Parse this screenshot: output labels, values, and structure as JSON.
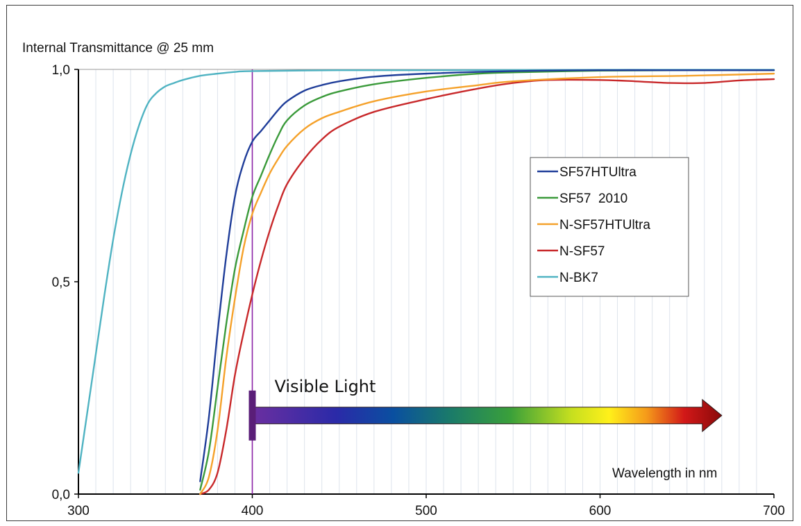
{
  "chart_data": {
    "type": "line",
    "ylabel": "Internal Transmittance @ 25 mm",
    "xlabel": "Wavelength  in nm",
    "xlim": [
      300,
      700
    ],
    "ylim": [
      0,
      1
    ],
    "x_ticks": [
      300,
      400,
      500,
      600,
      700
    ],
    "x_tick_labels": [
      "300",
      "400",
      "500",
      "600",
      "700"
    ],
    "y_ticks": [
      0,
      0.5,
      1
    ],
    "y_tick_labels": [
      "0,0",
      "0,5",
      "1,0"
    ],
    "grid": "vertical minor gridlines every 10 nm",
    "legend_position": "center-right",
    "marker_line_x": 400,
    "annotation": {
      "text": "Visible Light",
      "start_x": 400,
      "end_x": 670,
      "y": 0.185
    },
    "series": [
      {
        "name": "SF57HTUltra",
        "color": "#1f3d99",
        "points": [
          [
            370,
            0.03
          ],
          [
            375,
            0.18
          ],
          [
            380,
            0.38
          ],
          [
            385,
            0.56
          ],
          [
            390,
            0.7
          ],
          [
            395,
            0.78
          ],
          [
            400,
            0.83
          ],
          [
            405,
            0.855
          ],
          [
            410,
            0.88
          ],
          [
            415,
            0.905
          ],
          [
            420,
            0.925
          ],
          [
            430,
            0.95
          ],
          [
            440,
            0.963
          ],
          [
            450,
            0.972
          ],
          [
            470,
            0.983
          ],
          [
            500,
            0.99
          ],
          [
            550,
            0.996
          ],
          [
            600,
            0.998
          ],
          [
            650,
            0.998
          ],
          [
            700,
            0.998
          ]
        ]
      },
      {
        "name": "SF57  2010",
        "color": "#3a9a3a",
        "points": [
          [
            370,
            0.01
          ],
          [
            375,
            0.1
          ],
          [
            380,
            0.25
          ],
          [
            385,
            0.4
          ],
          [
            390,
            0.53
          ],
          [
            395,
            0.62
          ],
          [
            400,
            0.7
          ],
          [
            405,
            0.75
          ],
          [
            410,
            0.8
          ],
          [
            415,
            0.845
          ],
          [
            420,
            0.88
          ],
          [
            430,
            0.915
          ],
          [
            440,
            0.935
          ],
          [
            450,
            0.948
          ],
          [
            470,
            0.965
          ],
          [
            500,
            0.98
          ],
          [
            530,
            0.99
          ],
          [
            550,
            0.993
          ],
          [
            600,
            0.997
          ],
          [
            650,
            0.998
          ],
          [
            700,
            0.998
          ]
        ]
      },
      {
        "name": "N-SF57HTUltra",
        "color": "#f5a12a",
        "points": [
          [
            370,
            0.0
          ],
          [
            375,
            0.04
          ],
          [
            380,
            0.15
          ],
          [
            385,
            0.32
          ],
          [
            390,
            0.46
          ],
          [
            395,
            0.58
          ],
          [
            400,
            0.66
          ],
          [
            405,
            0.71
          ],
          [
            410,
            0.755
          ],
          [
            415,
            0.79
          ],
          [
            420,
            0.82
          ],
          [
            430,
            0.86
          ],
          [
            440,
            0.885
          ],
          [
            450,
            0.9
          ],
          [
            470,
            0.925
          ],
          [
            500,
            0.948
          ],
          [
            530,
            0.963
          ],
          [
            550,
            0.972
          ],
          [
            600,
            0.982
          ],
          [
            650,
            0.985
          ],
          [
            700,
            0.99
          ]
        ]
      },
      {
        "name": "N-SF57",
        "color": "#c8282a",
        "points": [
          [
            370,
            0.0
          ],
          [
            375,
            0.01
          ],
          [
            380,
            0.05
          ],
          [
            385,
            0.15
          ],
          [
            390,
            0.28
          ],
          [
            395,
            0.38
          ],
          [
            400,
            0.47
          ],
          [
            405,
            0.55
          ],
          [
            410,
            0.62
          ],
          [
            415,
            0.68
          ],
          [
            420,
            0.73
          ],
          [
            430,
            0.79
          ],
          [
            440,
            0.835
          ],
          [
            450,
            0.865
          ],
          [
            470,
            0.9
          ],
          [
            500,
            0.93
          ],
          [
            530,
            0.955
          ],
          [
            550,
            0.968
          ],
          [
            570,
            0.975
          ],
          [
            600,
            0.975
          ],
          [
            620,
            0.972
          ],
          [
            640,
            0.968
          ],
          [
            660,
            0.968
          ],
          [
            680,
            0.974
          ],
          [
            700,
            0.977
          ]
        ]
      },
      {
        "name": "N-BK7",
        "color": "#4fb3c2",
        "points": [
          [
            300,
            0.05
          ],
          [
            305,
            0.19
          ],
          [
            310,
            0.33
          ],
          [
            315,
            0.47
          ],
          [
            320,
            0.6
          ],
          [
            325,
            0.71
          ],
          [
            330,
            0.8
          ],
          [
            335,
            0.87
          ],
          [
            340,
            0.92
          ],
          [
            345,
            0.945
          ],
          [
            350,
            0.96
          ],
          [
            355,
            0.968
          ],
          [
            360,
            0.975
          ],
          [
            370,
            0.985
          ],
          [
            380,
            0.99
          ],
          [
            390,
            0.994
          ],
          [
            400,
            0.996
          ],
          [
            450,
            0.998
          ],
          [
            500,
            0.998
          ],
          [
            600,
            0.999
          ],
          [
            700,
            0.999
          ]
        ]
      }
    ]
  }
}
